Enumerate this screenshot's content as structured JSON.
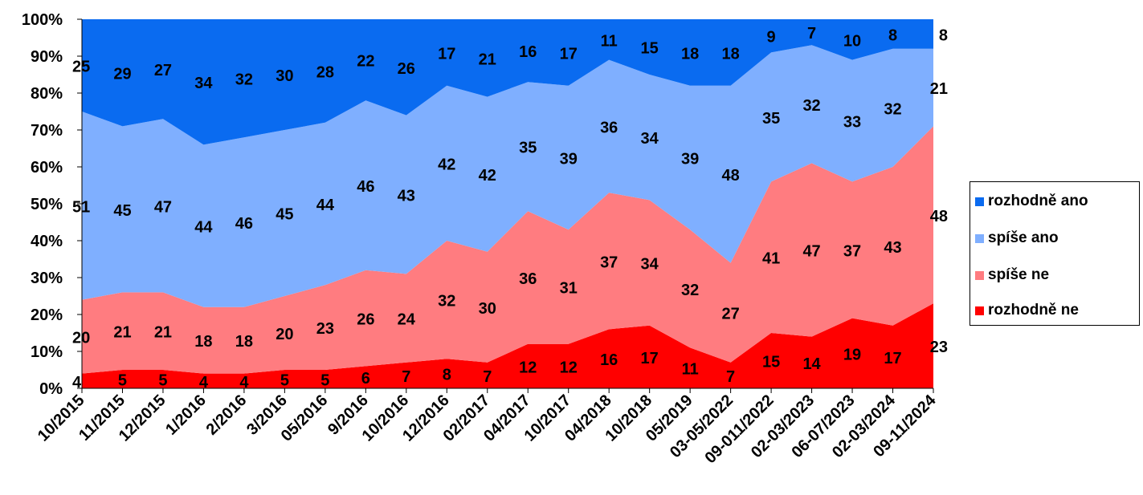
{
  "chart_data": {
    "type": "area",
    "stacked": true,
    "percent": true,
    "categories": [
      "10/2015",
      "11/2015",
      "12/2015",
      "1/2016",
      "2/2016",
      "3/2016",
      "05/2016",
      "9/2016",
      "10/2016",
      "12/2016",
      "02/2017",
      "04/2017",
      "10/2017",
      "04/2018",
      "10/2018",
      "05/2019",
      "03-05/2022",
      "09-011/2022",
      "02-03/2023",
      "06-07/2023",
      "02-03/2024",
      "09-11/2024"
    ],
    "y_ticks": [
      "0%",
      "10%",
      "20%",
      "30%",
      "40%",
      "50%",
      "60%",
      "70%",
      "80%",
      "90%",
      "100%"
    ],
    "ylim": [
      0,
      100
    ],
    "legend_position": "right",
    "series": [
      {
        "name": "rozhodně ne",
        "color": "#FF0000",
        "values": [
          4,
          5,
          5,
          4,
          4,
          5,
          5,
          6,
          7,
          8,
          7,
          12,
          12,
          16,
          17,
          11,
          7,
          15,
          14,
          19,
          17,
          23
        ]
      },
      {
        "name": "spíše ne",
        "color": "#FF7C80",
        "values": [
          20,
          21,
          21,
          18,
          18,
          20,
          23,
          26,
          24,
          32,
          30,
          36,
          31,
          37,
          34,
          32,
          27,
          41,
          47,
          37,
          43,
          48
        ]
      },
      {
        "name": "spíše ano",
        "color": "#7FAFFF",
        "values": [
          51,
          45,
          47,
          44,
          46,
          45,
          44,
          46,
          43,
          42,
          42,
          35,
          39,
          36,
          34,
          39,
          48,
          35,
          32,
          33,
          32,
          21
        ]
      },
      {
        "name": "rozhodně ano",
        "color": "#0A6BF0",
        "values": [
          25,
          29,
          27,
          34,
          32,
          30,
          28,
          22,
          26,
          17,
          21,
          16,
          17,
          11,
          15,
          18,
          18,
          9,
          7,
          10,
          8,
          8
        ]
      }
    ]
  },
  "legend": {
    "items": [
      {
        "label": "rozhodně ano",
        "color": "#0A6BF0"
      },
      {
        "label": "spíše ano",
        "color": "#7FAFFF"
      },
      {
        "label": "spíše ne",
        "color": "#FF7C80"
      },
      {
        "label": "rozhodně ne",
        "color": "#FF0000"
      }
    ]
  }
}
